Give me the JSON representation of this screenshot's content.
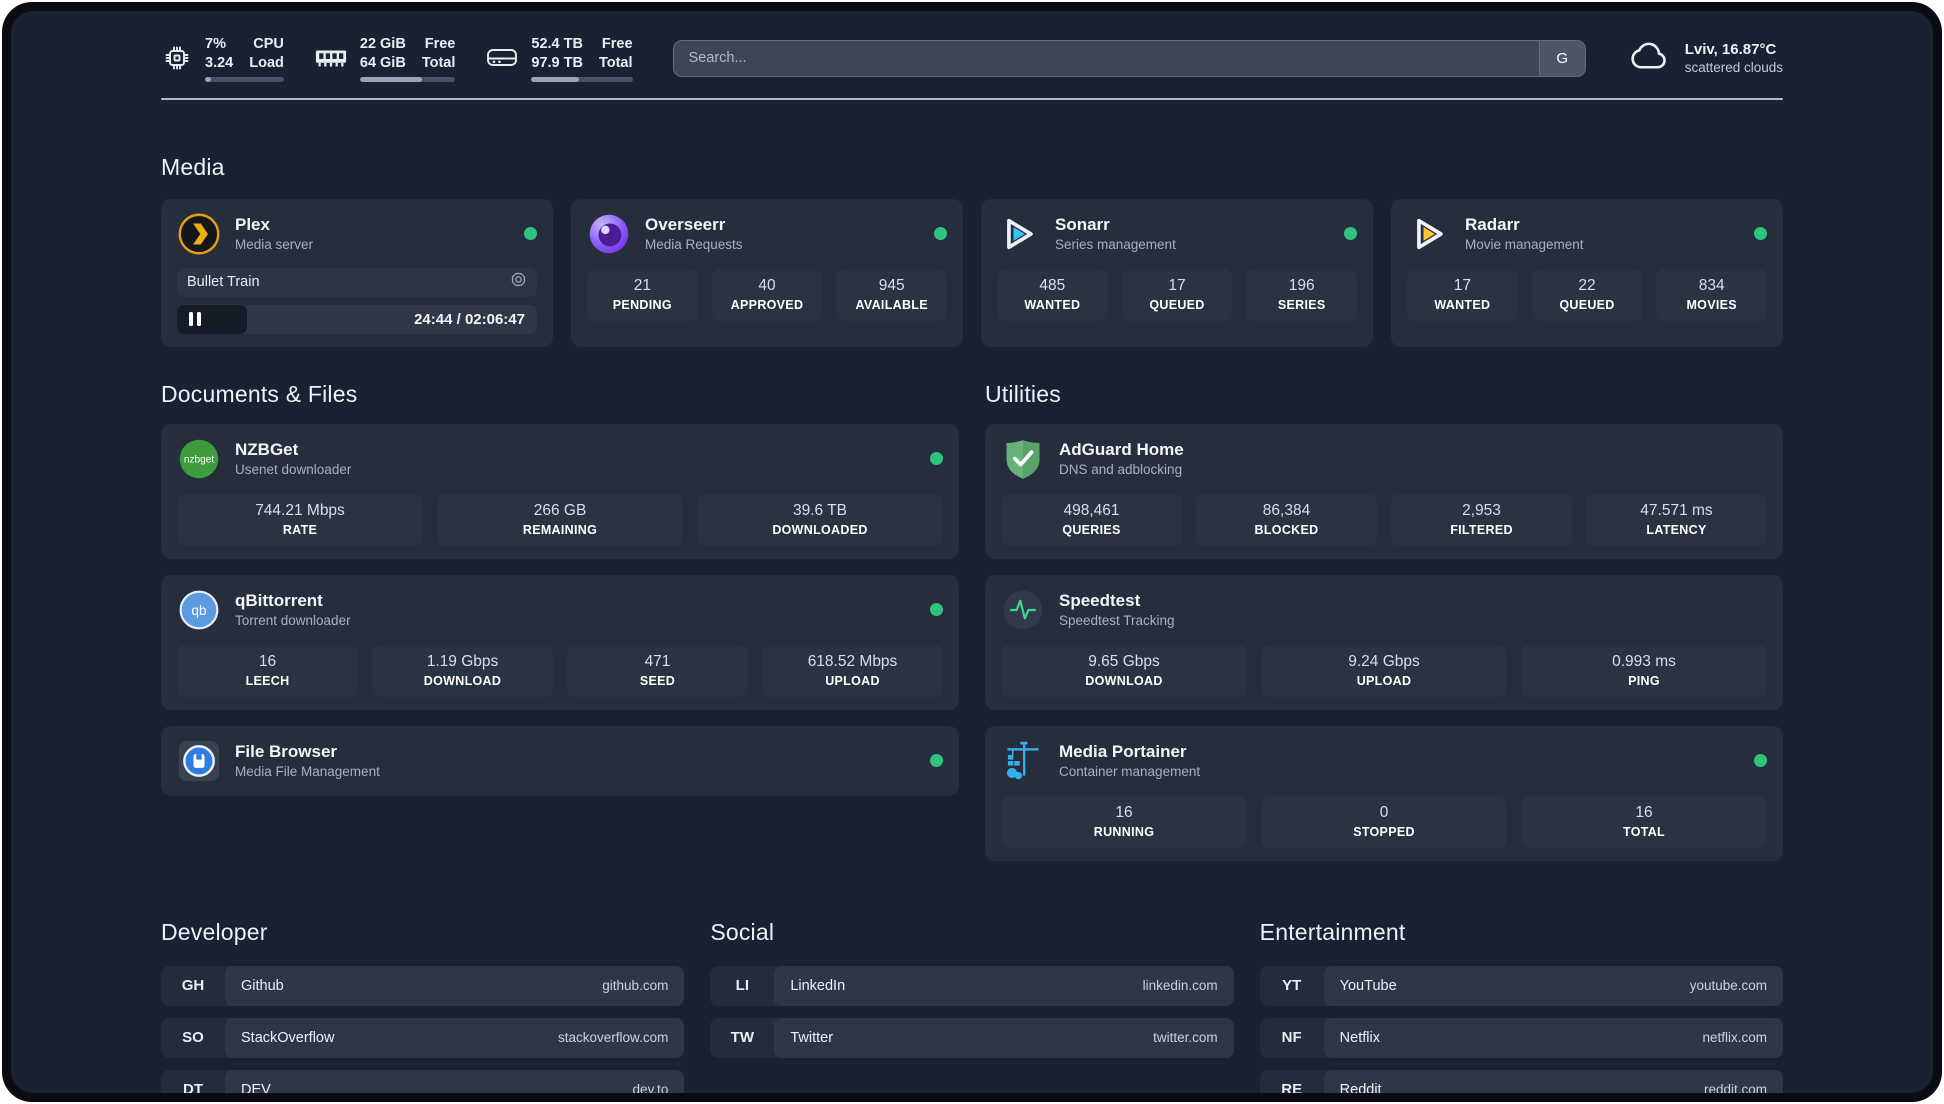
{
  "topbar": {
    "cpu": {
      "icon": "cpu-chip-icon",
      "values": [
        "7%",
        "3.24"
      ],
      "labels": [
        "CPU",
        "Load"
      ],
      "progress_pct": 7
    },
    "ram": {
      "icon": "ram-icon",
      "values": [
        "22 GiB",
        "64 GiB"
      ],
      "labels": [
        "Free",
        "Total"
      ],
      "progress_pct": 65
    },
    "disk": {
      "icon": "disk-icon",
      "values": [
        "52.4 TB",
        "97.9 TB"
      ],
      "labels": [
        "Free",
        "Total"
      ],
      "progress_pct": 47
    },
    "search": {
      "placeholder": "Search...",
      "engine_button": "G"
    },
    "weather": {
      "icon": "cloud-icon",
      "headline": "Lviv, 16.87°C",
      "condition": "scattered clouds"
    }
  },
  "sections": {
    "media": {
      "title": "Media",
      "apps": [
        {
          "name": "Plex",
          "subtitle": "Media server",
          "icon": "plex-icon",
          "online": true,
          "player": {
            "now_playing": "Bullet Train",
            "state": "paused",
            "time_display": "24:44 / 02:06:47",
            "elapsed": "24:44",
            "duration": "02:06:47",
            "progress_pct": 19.5
          }
        },
        {
          "name": "Overseerr",
          "subtitle": "Media Requests",
          "icon": "overseerr-icon",
          "online": true,
          "stats": [
            {
              "value": "21",
              "label": "PENDING"
            },
            {
              "value": "40",
              "label": "APPROVED"
            },
            {
              "value": "945",
              "label": "AVAILABLE"
            }
          ]
        },
        {
          "name": "Sonarr",
          "subtitle": "Series management",
          "icon": "sonarr-icon",
          "online": true,
          "stats": [
            {
              "value": "485",
              "label": "WANTED"
            },
            {
              "value": "17",
              "label": "QUEUED"
            },
            {
              "value": "196",
              "label": "SERIES"
            }
          ]
        },
        {
          "name": "Radarr",
          "subtitle": "Movie management",
          "icon": "radarr-icon",
          "online": true,
          "stats": [
            {
              "value": "17",
              "label": "WANTED"
            },
            {
              "value": "22",
              "label": "QUEUED"
            },
            {
              "value": "834",
              "label": "MOVIES"
            }
          ]
        }
      ]
    },
    "documents": {
      "title": "Documents & Files",
      "apps": [
        {
          "name": "NZBGet",
          "subtitle": "Usenet downloader",
          "icon": "nzbget-icon",
          "online": true,
          "stats": [
            {
              "value": "744.21 Mbps",
              "label": "RATE"
            },
            {
              "value": "266 GB",
              "label": "REMAINING"
            },
            {
              "value": "39.6 TB",
              "label": "DOWNLOADED"
            }
          ]
        },
        {
          "name": "qBittorrent",
          "subtitle": "Torrent downloader",
          "icon": "qbittorrent-icon",
          "online": true,
          "stats": [
            {
              "value": "16",
              "label": "LEECH"
            },
            {
              "value": "1.19 Gbps",
              "label": "DOWNLOAD"
            },
            {
              "value": "471",
              "label": "SEED"
            },
            {
              "value": "618.52 Mbps",
              "label": "UPLOAD"
            }
          ]
        },
        {
          "name": "File Browser",
          "subtitle": "Media File Management",
          "icon": "filebrowser-icon",
          "online": true
        }
      ]
    },
    "utilities": {
      "title": "Utilities",
      "apps": [
        {
          "name": "AdGuard Home",
          "subtitle": "DNS and adblocking",
          "icon": "adguard-icon",
          "stats": [
            {
              "value": "498,461",
              "label": "QUERIES"
            },
            {
              "value": "86,384",
              "label": "BLOCKED"
            },
            {
              "value": "2,953",
              "label": "FILTERED"
            },
            {
              "value": "47.571 ms",
              "label": "LATENCY"
            }
          ]
        },
        {
          "name": "Speedtest",
          "subtitle": "Speedtest Tracking",
          "icon": "speedtest-icon",
          "stats": [
            {
              "value": "9.65 Gbps",
              "label": "DOWNLOAD"
            },
            {
              "value": "9.24 Gbps",
              "label": "UPLOAD"
            },
            {
              "value": "0.993 ms",
              "label": "PING"
            }
          ]
        },
        {
          "name": "Media Portainer",
          "subtitle": "Container management",
          "icon": "portainer-icon",
          "online": true,
          "stats": [
            {
              "value": "16",
              "label": "RUNNING"
            },
            {
              "value": "0",
              "label": "STOPPED"
            },
            {
              "value": "16",
              "label": "TOTAL"
            }
          ]
        }
      ]
    },
    "bookmarks": [
      {
        "title": "Developer",
        "links": [
          {
            "abbr": "GH",
            "name": "Github",
            "domain": "github.com"
          },
          {
            "abbr": "SO",
            "name": "StackOverflow",
            "domain": "stackoverflow.com"
          },
          {
            "abbr": "DT",
            "name": "DEV",
            "domain": "dev.to"
          }
        ]
      },
      {
        "title": "Social",
        "links": [
          {
            "abbr": "LI",
            "name": "LinkedIn",
            "domain": "linkedin.com"
          },
          {
            "abbr": "TW",
            "name": "Twitter",
            "domain": "twitter.com"
          }
        ]
      },
      {
        "title": "Entertainment",
        "links": [
          {
            "abbr": "YT",
            "name": "YouTube",
            "domain": "youtube.com"
          },
          {
            "abbr": "NF",
            "name": "Netflix",
            "domain": "netflix.com"
          },
          {
            "abbr": "RE",
            "name": "Reddit",
            "domain": "reddit.com"
          }
        ]
      }
    ]
  },
  "colors": {
    "status_online": "#2ec47e",
    "plex_accent": "#e5a00d",
    "overseerr_accent": "#8b5cf6",
    "sonarr_accent": "#35c5f4",
    "radarr_accent": "#ffc230",
    "nzbget_accent": "#3e9c3e",
    "qbittorrent_accent": "#5a9ae0",
    "adguard_accent": "#67b279",
    "speedtest_accent": "#3fd68f",
    "portainer_accent": "#33b1e8",
    "panel_background": "#1a2132",
    "card_background": "#262d3d",
    "tile_background": "#2b3343"
  }
}
